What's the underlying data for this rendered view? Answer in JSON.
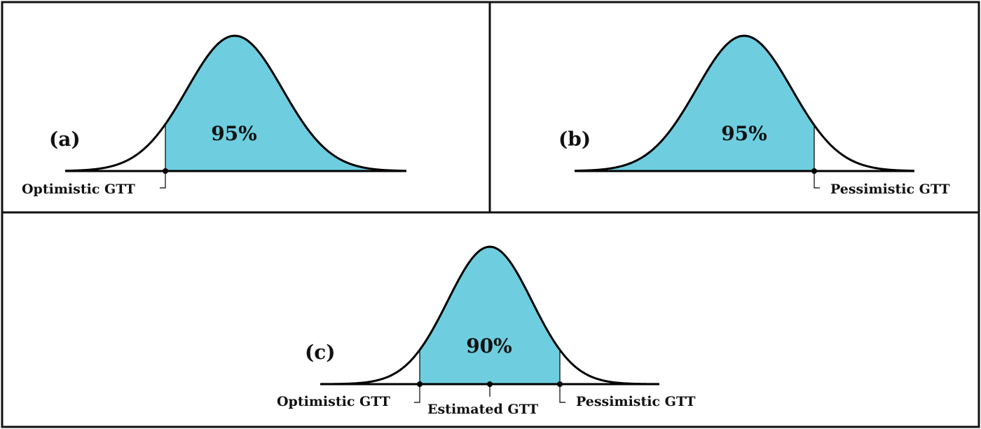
{
  "colors": {
    "fill": "#6ecedf",
    "stroke": "#000000",
    "frame": "#111111"
  },
  "panels": {
    "a": {
      "label": "(a)",
      "shaded_percent": "95%",
      "shaded_region": "right-of-cutoff",
      "markers": [
        {
          "name": "optimistic",
          "text": "Optimistic GTT"
        }
      ]
    },
    "b": {
      "label": "(b)",
      "shaded_percent": "95%",
      "shaded_region": "left-of-cutoff",
      "markers": [
        {
          "name": "pessimistic",
          "text": "Pessimistic GTT"
        }
      ]
    },
    "c": {
      "label": "(c)",
      "shaded_percent": "90%",
      "shaded_region": "between-cutoffs",
      "markers": [
        {
          "name": "optimistic",
          "text": "Optimistic GTT"
        },
        {
          "name": "estimated",
          "text": "Estimated GTT"
        },
        {
          "name": "pessimistic",
          "text": "Pessimistic GTT"
        }
      ]
    }
  }
}
